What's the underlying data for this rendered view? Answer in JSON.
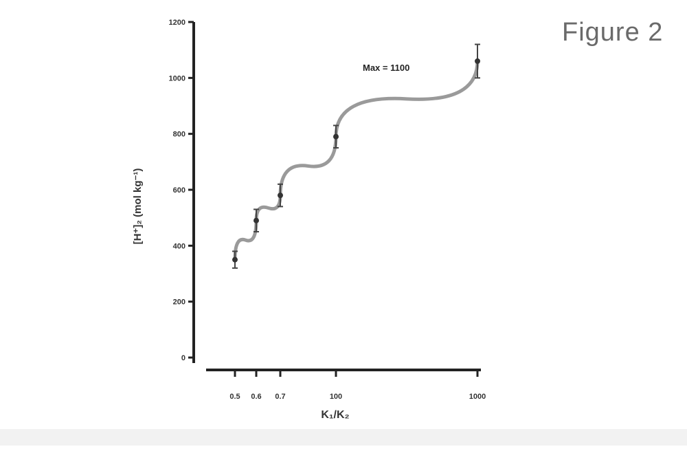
{
  "figure_label": "Figure 2",
  "chart_data": {
    "type": "line",
    "title": "",
    "xlabel": "K₁/K₂",
    "ylabel": "[H⁺]₂ (mol kg⁻¹)",
    "x_tick_labels": [
      "0.5",
      "0.6",
      "0.7",
      "100",
      "1000"
    ],
    "y_tick_labels": [
      "0",
      "200",
      "400",
      "600",
      "800",
      "1000",
      "1200"
    ],
    "ylim": [
      0,
      1200
    ],
    "annotation": "Max = 1100",
    "series": [
      {
        "values": [
          350,
          490,
          580,
          790,
          1060
        ],
        "error_bars": [
          30,
          40,
          40,
          40,
          60
        ]
      }
    ],
    "colors": {
      "axis": "#222222",
      "line": "#9a9a9a",
      "marker": "#333333",
      "text": "#222222"
    }
  }
}
